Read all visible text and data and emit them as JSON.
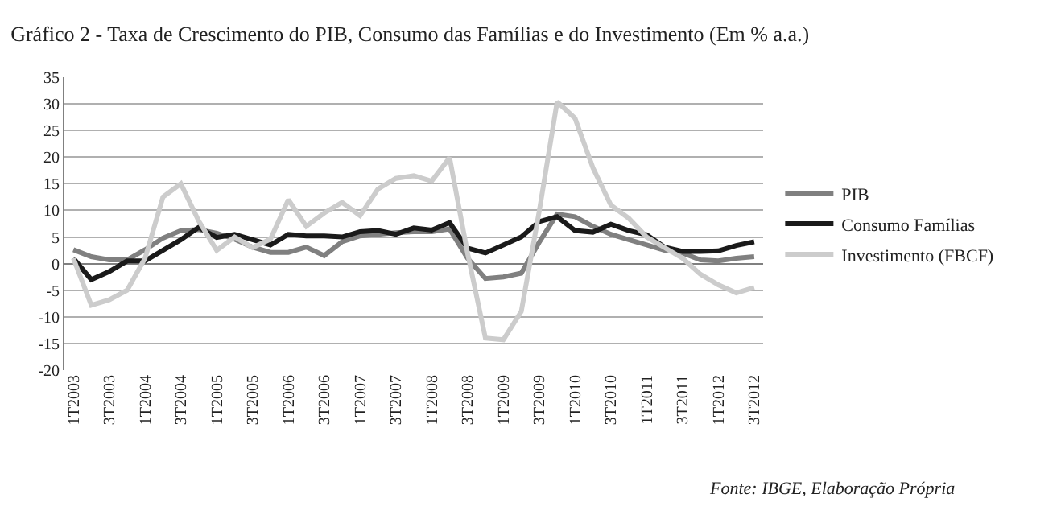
{
  "chart_data": {
    "type": "line",
    "title": "Gráfico 2 - Taxa de Crescimento do PIB, Consumo das Famílias e do Investimento (Em % a.a.)",
    "categories": [
      "1T2003",
      null,
      "3T2003",
      null,
      "1T2004",
      null,
      "3T2004",
      null,
      "1T2005",
      null,
      "3T2005",
      null,
      "1T2006",
      null,
      "3T2006",
      null,
      "1T2007",
      null,
      "3T2007",
      null,
      "1T2008",
      null,
      "3T2008",
      null,
      "1T2009",
      null,
      "3T2009",
      null,
      "1T2010",
      null,
      "3T2010",
      null,
      "1T2011",
      null,
      "3T2011",
      null,
      "1T2012",
      null,
      "3T2012"
    ],
    "series": [
      {
        "name": "PIB",
        "color": "#808080",
        "values": [
          2.6,
          1.3,
          0.7,
          0.7,
          2.6,
          4.8,
          6.2,
          6.4,
          5.7,
          4.6,
          3.1,
          2.1,
          2.1,
          3.1,
          1.5,
          4.1,
          5.2,
          5.5,
          5.8,
          6.0,
          6.0,
          6.5,
          1.0,
          -2.8,
          -2.5,
          -1.8,
          4.0,
          9.3,
          8.8,
          7.0,
          5.5,
          4.5,
          3.5,
          2.5,
          2.0,
          0.7,
          0.5,
          1.0,
          1.3
        ]
      },
      {
        "name": "Consumo Famílias",
        "color": "#1a1a1a",
        "values": [
          1.0,
          -3.0,
          -1.5,
          0.5,
          0.5,
          2.5,
          4.5,
          6.8,
          4.9,
          5.5,
          4.5,
          3.5,
          5.5,
          5.2,
          5.2,
          5.0,
          6.0,
          6.2,
          5.5,
          6.7,
          6.3,
          7.7,
          2.9,
          2.0,
          3.5,
          5.0,
          7.9,
          8.8,
          6.2,
          5.9,
          7.4,
          6.2,
          5.4,
          3.1,
          2.3,
          2.3,
          2.4,
          3.4,
          4.1
        ]
      },
      {
        "name": "Investimento (FBCF)",
        "color": "#cccccc",
        "values": [
          1.0,
          -7.8,
          -6.8,
          -5.0,
          1.0,
          12.5,
          15.0,
          8.0,
          2.5,
          5.0,
          3.0,
          4.6,
          12.0,
          7.0,
          9.5,
          11.5,
          9.0,
          14.0,
          16.0,
          16.5,
          15.5,
          19.9,
          2.0,
          -14.0,
          -14.3,
          -9.0,
          9.8,
          30.4,
          27.3,
          18.0,
          11.0,
          8.5,
          5.0,
          3.0,
          1.0,
          -2.0,
          -4.0,
          -5.5,
          -4.5
        ]
      }
    ],
    "ylim": [
      -20,
      35
    ],
    "yticks": [
      -20,
      -15,
      -10,
      -5,
      0,
      5,
      10,
      15,
      20,
      25,
      30,
      35
    ],
    "grid": "y",
    "legend": "right",
    "annotations": [
      "Fonte: IBGE, Elaboração Própria"
    ]
  }
}
